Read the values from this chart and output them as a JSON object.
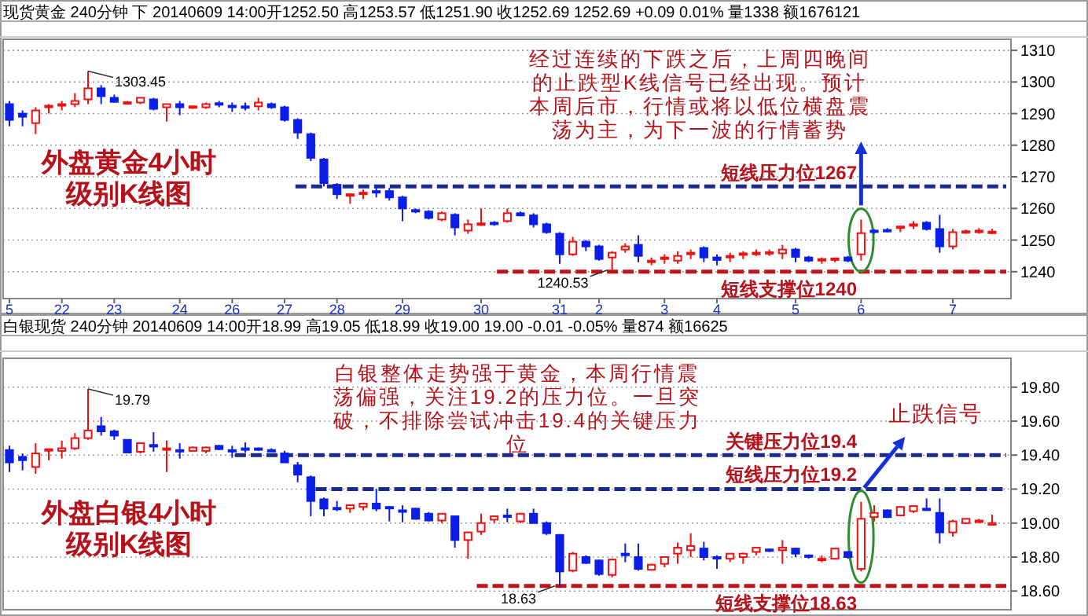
{
  "chart_data": [
    {
      "type": "candlestick",
      "title": "现货黄金 240分钟 下 20140609 14:00开1252.50 高1253.57 低1251.90 收1252.69 1252.69 +0.09 0.01% 量1338 额1676121",
      "categories": [
        "5",
        null,
        null,
        null,
        "22",
        null,
        null,
        null,
        "23",
        null,
        null,
        null,
        null,
        "24",
        null,
        null,
        null,
        "26",
        null,
        null,
        null,
        "27",
        null,
        null,
        null,
        "28",
        null,
        null,
        null,
        null,
        "29",
        null,
        null,
        null,
        null,
        null,
        "30",
        null,
        null,
        null,
        null,
        null,
        "31",
        null,
        null,
        "2",
        null,
        null,
        null,
        null,
        "3",
        null,
        null,
        null,
        "4",
        null,
        null,
        null,
        null,
        null,
        "5",
        null,
        null,
        null,
        null,
        "6",
        null,
        null,
        null,
        null,
        null,
        null,
        "7",
        null,
        null,
        null
      ],
      "ohlc": [
        [
          1293,
          1294,
          1286,
          1288
        ],
        [
          1290,
          1291,
          1286,
          1289
        ],
        [
          1287,
          1292,
          1283.5,
          1291
        ],
        [
          1292,
          1293,
          1290,
          1292.5
        ],
        [
          1292.5,
          1294,
          1291,
          1293
        ],
        [
          1293,
          1296.5,
          1292,
          1294
        ],
        [
          1294.5,
          1303.45,
          1293,
          1298
        ],
        [
          1298,
          1299,
          1293,
          1295.5
        ],
        [
          1295,
          1296,
          1293.5,
          1293.7
        ],
        [
          1293.5,
          1294,
          1293,
          1293.6
        ],
        [
          1293.5,
          1295,
          1293,
          1295
        ],
        [
          1294.5,
          1295,
          1291,
          1291.5
        ],
        [
          1292,
          1293,
          1287.5,
          1293
        ],
        [
          1293,
          1294,
          1289.5,
          1292
        ],
        [
          1292,
          1292.5,
          1291.5,
          1292.3
        ],
        [
          1292,
          1293.5,
          1291.5,
          1293
        ],
        [
          1293.3,
          1294,
          1292,
          1292.8
        ],
        [
          1292.5,
          1293.5,
          1290.5,
          1292
        ],
        [
          1292.3,
          1293.5,
          1291,
          1292
        ],
        [
          1292.3,
          1295,
          1291,
          1293.5
        ],
        [
          1293,
          1293.5,
          1291.5,
          1292
        ],
        [
          1292,
          1292.5,
          1287.5,
          1288
        ],
        [
          1288,
          1288.5,
          1282,
          1284
        ],
        [
          1283.5,
          1284,
          1275,
          1276
        ],
        [
          1275.5,
          1276,
          1267,
          1268
        ],
        [
          1267.5,
          1268,
          1263,
          1264.5
        ],
        [
          1264,
          1264.7,
          1261.5,
          1264.5
        ],
        [
          1264.8,
          1266,
          1263,
          1265
        ],
        [
          1265.5,
          1267,
          1263.5,
          1265
        ],
        [
          1265.5,
          1266.5,
          1262.5,
          1263.5
        ],
        [
          1263.5,
          1264,
          1256,
          1260
        ],
        [
          1259.5,
          1260,
          1258.5,
          1259
        ],
        [
          1259,
          1259.5,
          1256.5,
          1257
        ],
        [
          1256.5,
          1259,
          1256,
          1258.5
        ],
        [
          1258,
          1258.5,
          1251.5,
          1254
        ],
        [
          1253,
          1256.5,
          1252,
          1255
        ],
        [
          1255,
          1260,
          1254.5,
          1255.3
        ],
        [
          1255.5,
          1256,
          1254.5,
          1255
        ],
        [
          1256,
          1260,
          1255.5,
          1258.5
        ],
        [
          1258.5,
          1259,
          1257.5,
          1257.8
        ],
        [
          1257.8,
          1258.5,
          1254,
          1255
        ],
        [
          1255,
          1255.5,
          1252,
          1252.5
        ],
        [
          1252,
          1252.5,
          1242.5,
          1245.5
        ],
        [
          1245.5,
          1251,
          1245,
          1249.5
        ],
        [
          1249.5,
          1250,
          1246.5,
          1248
        ],
        [
          1248,
          1248.5,
          1243.5,
          1244
        ],
        [
          1244.5,
          1246.5,
          1240.53,
          1246
        ],
        [
          1247,
          1249,
          1246,
          1248
        ],
        [
          1248.5,
          1251.5,
          1243,
          1245
        ],
        [
          1243,
          1244.5,
          1242,
          1243.5
        ],
        [
          1244,
          1245.5,
          1242.5,
          1244.5
        ],
        [
          1243.5,
          1246.5,
          1242.5,
          1245
        ],
        [
          1245.5,
          1247,
          1244,
          1246
        ],
        [
          1247.5,
          1248,
          1243,
          1244.5
        ],
        [
          1244.5,
          1245.5,
          1242,
          1243.7
        ],
        [
          1244.5,
          1246,
          1243,
          1245
        ],
        [
          1245.3,
          1246.5,
          1244,
          1245.8
        ],
        [
          1245.8,
          1247,
          1245,
          1246
        ],
        [
          1246,
          1247,
          1245,
          1246.2
        ],
        [
          1245.8,
          1248.5,
          1244,
          1247
        ],
        [
          1247,
          1247.5,
          1243,
          1244.7
        ],
        [
          1244.5,
          1245,
          1243,
          1243.5
        ],
        [
          1243.5,
          1244.5,
          1242.5,
          1244
        ],
        [
          1243.8,
          1244.5,
          1243,
          1244.2
        ],
        [
          1244.5,
          1245,
          1243,
          1243.5
        ],
        [
          1245.5,
          1256.5,
          1243.5,
          1252.2
        ],
        [
          1253,
          1253.5,
          1252,
          1252.8
        ],
        [
          1253.2,
          1253.8,
          1252.5,
          1253
        ],
        [
          1253.8,
          1254.5,
          1252.5,
          1254.3
        ],
        [
          1254.5,
          1256,
          1253.5,
          1255
        ],
        [
          1255.5,
          1256,
          1253,
          1253.5
        ],
        [
          1253.5,
          1258,
          1246,
          1248
        ],
        [
          1248,
          1253.5,
          1247,
          1252.5
        ],
        [
          1252.5,
          1253.3,
          1252,
          1252.8
        ],
        [
          1252.8,
          1253.8,
          1252,
          1253
        ],
        [
          1252.5,
          1253.57,
          1251.9,
          1252.69
        ]
      ],
      "ylim": [
        1231.5,
        1313.5
      ],
      "yticks": [
        {
          "value": 1240,
          "label": "1240"
        },
        {
          "value": 1250,
          "label": "1250"
        },
        {
          "value": 1260,
          "label": "1260"
        },
        {
          "value": 1270,
          "label": "1270"
        },
        {
          "value": 1280,
          "label": "1280"
        },
        {
          "value": 1290,
          "label": "1290"
        },
        {
          "value": 1300,
          "label": "1300"
        },
        {
          "value": 1310,
          "label": "1310"
        }
      ],
      "grid": "y",
      "ref_lines": [
        {
          "axis": "y",
          "value": 1267,
          "label": "短线压力位1267",
          "color": "#1c2a8c",
          "line_style": "dashed"
        },
        {
          "axis": "y",
          "value": 1240,
          "label": "短线支撑位1240",
          "color": "#c0121b",
          "line_style": "dashed"
        }
      ],
      "annotations": [
        "外盘黄金4小时级别K线图",
        "经过连续的下跌之后，上周四晚间的止跌型K线信号已经出现。预计本周后市，行情或将以低位横盘震荡为主，为下一波的行情蓄势",
        "1303.45",
        "1240.53"
      ]
    },
    {
      "type": "candlestick",
      "title": "白银现货 240分钟 20140609 14:00开18.99 高19.05 低18.99 收19.00 19.00 -0.01 -0.05% 量874 额16625",
      "categories": [
        null,
        null,
        null,
        null,
        null,
        null,
        null,
        null,
        null,
        null,
        null,
        null,
        null,
        null,
        null,
        null,
        null,
        null,
        null,
        null,
        null,
        null,
        null,
        null,
        null,
        null,
        null,
        null,
        null,
        null,
        null,
        null,
        null,
        null,
        null,
        null,
        null,
        null,
        null,
        null,
        null,
        null,
        null,
        null,
        null,
        null,
        null,
        null,
        null,
        null,
        null,
        null,
        null,
        null,
        null,
        null,
        null,
        null,
        null,
        null,
        null,
        null,
        null,
        null,
        null,
        null,
        null,
        null,
        null,
        null,
        null,
        null,
        null,
        null,
        null,
        null
      ],
      "ohlc": [
        [
          19.43,
          19.455,
          19.3,
          19.357
        ],
        [
          19.39,
          19.41,
          19.31,
          19.37
        ],
        [
          19.33,
          19.47,
          19.29,
          19.41
        ],
        [
          19.43,
          19.435,
          19.37,
          19.435
        ],
        [
          19.425,
          19.485,
          19.38,
          19.44
        ],
        [
          19.44,
          19.53,
          19.43,
          19.5
        ],
        [
          19.5,
          19.79,
          19.49,
          19.545
        ],
        [
          19.57,
          19.625,
          19.515,
          19.54
        ],
        [
          19.54,
          19.55,
          19.49,
          19.515
        ],
        [
          19.49,
          19.49,
          19.41,
          19.415
        ],
        [
          19.42,
          19.47,
          19.41,
          19.47
        ],
        [
          19.46,
          19.535,
          19.42,
          19.45
        ],
        [
          19.44,
          19.485,
          19.3,
          19.44
        ],
        [
          19.43,
          19.47,
          19.38,
          19.425
        ],
        [
          19.425,
          19.45,
          19.42,
          19.445
        ],
        [
          19.425,
          19.45,
          19.41,
          19.445
        ],
        [
          19.455,
          19.46,
          19.43,
          19.435
        ],
        [
          19.43,
          19.455,
          19.385,
          19.425
        ],
        [
          19.44,
          19.475,
          19.415,
          19.435
        ],
        [
          19.44,
          19.445,
          19.425,
          19.435
        ],
        [
          19.43,
          19.44,
          19.42,
          19.425
        ],
        [
          19.41,
          19.425,
          19.355,
          19.357
        ],
        [
          19.34,
          19.36,
          19.24,
          19.285
        ],
        [
          19.27,
          19.28,
          19.04,
          19.13
        ],
        [
          19.14,
          19.15,
          19.04,
          19.085
        ],
        [
          19.09,
          19.13,
          19.07,
          19.085
        ],
        [
          19.085,
          19.11,
          19.06,
          19.105
        ],
        [
          19.095,
          19.12,
          19.075,
          19.115
        ],
        [
          19.115,
          19.2,
          19.07,
          19.085
        ],
        [
          19.095,
          19.1,
          19.01,
          19.09
        ],
        [
          19.075,
          19.105,
          19.005,
          19.07
        ],
        [
          19.085,
          19.09,
          19.02,
          19.025
        ],
        [
          19.055,
          19.065,
          19.01,
          19.015
        ],
        [
          19.015,
          19.06,
          19.0,
          19.055
        ],
        [
          19.04,
          19.045,
          18.855,
          18.9
        ],
        [
          18.9,
          18.95,
          18.79,
          18.945
        ],
        [
          18.95,
          19.055,
          18.93,
          19.0
        ],
        [
          19.02,
          19.045,
          19.0,
          19.04
        ],
        [
          19.045,
          19.085,
          19.005,
          19.04
        ],
        [
          19.01,
          19.06,
          19.0,
          19.055
        ],
        [
          19.055,
          19.085,
          19.0,
          19.0
        ],
        [
          19.0,
          19.01,
          18.93,
          18.94
        ],
        [
          18.93,
          18.935,
          18.63,
          18.715
        ],
        [
          18.72,
          18.83,
          18.71,
          18.82
        ],
        [
          18.8,
          18.81,
          18.76,
          18.765
        ],
        [
          18.78,
          18.785,
          18.69,
          18.7
        ],
        [
          18.695,
          18.79,
          18.68,
          18.785
        ],
        [
          18.82,
          18.88,
          18.77,
          18.81
        ],
        [
          18.8,
          18.88,
          18.72,
          18.73
        ],
        [
          18.725,
          18.76,
          18.72,
          18.755
        ],
        [
          18.76,
          18.8,
          18.74,
          18.8
        ],
        [
          18.82,
          18.885,
          18.76,
          18.855
        ],
        [
          18.84,
          18.94,
          18.8,
          18.865
        ],
        [
          18.85,
          18.89,
          18.78,
          18.8
        ],
        [
          18.8,
          18.81,
          18.73,
          18.795
        ],
        [
          18.79,
          18.82,
          18.77,
          18.82
        ],
        [
          18.8,
          18.825,
          18.76,
          18.82
        ],
        [
          18.83,
          18.86,
          18.81,
          18.855
        ],
        [
          18.845,
          18.85,
          18.83,
          18.84
        ],
        [
          18.84,
          18.9,
          18.76,
          18.855
        ],
        [
          18.85,
          18.855,
          18.8,
          18.82
        ],
        [
          18.81,
          18.815,
          18.79,
          18.805
        ],
        [
          18.79,
          18.81,
          18.77,
          18.79
        ],
        [
          18.79,
          18.85,
          18.785,
          18.85
        ],
        [
          18.83,
          18.835,
          18.79,
          18.8
        ],
        [
          18.73,
          19.125,
          18.715,
          19.025
        ],
        [
          19.035,
          19.105,
          19.01,
          19.06
        ],
        [
          19.075,
          19.08,
          19.03,
          19.035
        ],
        [
          19.045,
          19.1,
          19.04,
          19.095
        ],
        [
          19.07,
          19.1,
          19.06,
          19.1
        ],
        [
          19.085,
          19.145,
          19.08,
          19.08
        ],
        [
          19.06,
          19.145,
          18.88,
          18.945
        ],
        [
          18.945,
          19.02,
          18.92,
          19.01
        ],
        [
          19.0,
          19.025,
          18.995,
          19.025
        ],
        [
          19.015,
          19.025,
          19.0,
          19.015
        ],
        [
          18.99,
          19.05,
          18.99,
          19.0
        ]
      ],
      "ylim": [
        18.49,
        19.97
      ],
      "yticks": [
        {
          "value": 18.6,
          "label": "18.60"
        },
        {
          "value": 18.8,
          "label": "18.80"
        },
        {
          "value": 19.0,
          "label": "19.00"
        },
        {
          "value": 19.2,
          "label": "19.20"
        },
        {
          "value": 19.4,
          "label": "19.40"
        },
        {
          "value": 19.6,
          "label": "19.60"
        },
        {
          "value": 19.8,
          "label": "19.80"
        }
      ],
      "grid": "y",
      "ref_lines": [
        {
          "axis": "y",
          "value": 19.4,
          "label": "关键压力位19.4",
          "color": "#1c2a8c",
          "line_style": "dashed"
        },
        {
          "axis": "y",
          "value": 19.2,
          "label": "短线压力位19.2",
          "color": "#1c2a8c",
          "line_style": "dashed"
        },
        {
          "axis": "y",
          "value": 18.63,
          "label": "短线支撑位18.63",
          "color": "#c0121b",
          "line_style": "dashed"
        }
      ],
      "annotations": [
        "白银整体走势强于黄金，本周行情震荡偏强，关注19.2的压力位。一旦突破，不排除尝试冲击19.4的关键压力位",
        "外盘白银4小时级别K线图",
        "止跌信号",
        "19.79",
        "18.63"
      ]
    }
  ]
}
